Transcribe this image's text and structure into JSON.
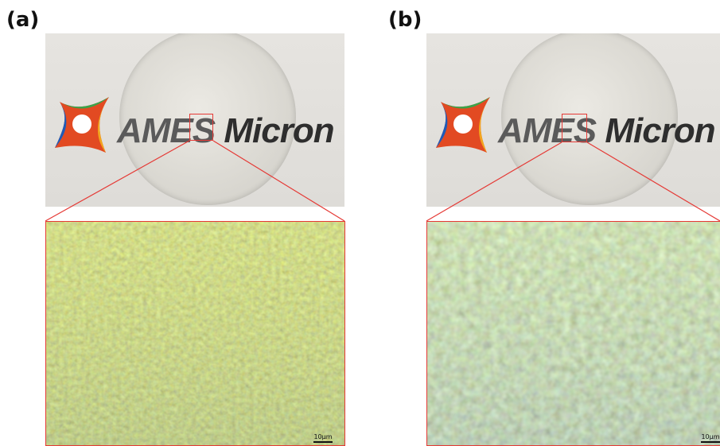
{
  "panels": [
    {
      "label": "(a)",
      "logo": {
        "brand": "AMES",
        "product": "Micron"
      },
      "scale_bar": "10μm"
    },
    {
      "label": "(b)",
      "logo": {
        "brand": "AMES",
        "product": "Micron"
      },
      "scale_bar": "10μm"
    }
  ],
  "colors": {
    "zoom_frame": "#e53935",
    "micrograph_base_a": "#8e9a3a",
    "micrograph_base_b": "#7b8a45"
  },
  "icons": [
    "ames-pinwheel-logo-icon"
  ]
}
